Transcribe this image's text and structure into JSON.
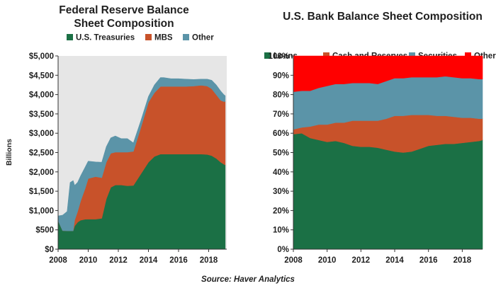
{
  "chart_data": [
    {
      "type": "area",
      "stacked": true,
      "title": "Federal Reserve Balance Sheet Composition",
      "xlabel": "",
      "ylabel": "Billions",
      "xlim": [
        2008,
        2019.2
      ],
      "ylim": [
        0,
        5000
      ],
      "x_ticks": [
        2008,
        2010,
        2012,
        2014,
        2016,
        2018
      ],
      "x_tick_labels": [
        "2008",
        "2010",
        "2012",
        "2014",
        "2016",
        "2018"
      ],
      "y_ticks": [
        0,
        500,
        1000,
        1500,
        2000,
        2500,
        3000,
        3500,
        4000,
        4500,
        5000
      ],
      "y_tick_labels": [
        "$0",
        "$500",
        "$1,000",
        "$1,500",
        "$2,000",
        "$2,500",
        "$3,000",
        "$3,500",
        "$4,000",
        "$4,500",
        "$5,000"
      ],
      "legend_position": "top",
      "grid": false,
      "background": "#e6e6e6",
      "x": [
        2008.0,
        2008.3,
        2008.6,
        2008.8,
        2009.0,
        2009.1,
        2009.3,
        2009.5,
        2009.8,
        2010.0,
        2010.5,
        2010.9,
        2011.2,
        2011.5,
        2011.8,
        2012.2,
        2012.6,
        2013.0,
        2013.5,
        2014.0,
        2014.4,
        2014.8,
        2015.0,
        2015.5,
        2016.0,
        2016.5,
        2017.0,
        2017.5,
        2017.9,
        2018.2,
        2018.5,
        2018.8,
        2019.0,
        2019.1
      ],
      "series": [
        {
          "name": "U.S. Treasuries",
          "color": "#1b7045",
          "values": [
            740,
            480,
            475,
            475,
            475,
            600,
            700,
            750,
            775,
            777,
            777,
            800,
            1300,
            1600,
            1660,
            1660,
            1640,
            1650,
            1950,
            2250,
            2400,
            2460,
            2460,
            2460,
            2460,
            2460,
            2460,
            2460,
            2450,
            2420,
            2350,
            2250,
            2200,
            2180
          ]
        },
        {
          "name": "MBS",
          "color": "#c8522a",
          "values": [
            0,
            0,
            0,
            0,
            0,
            150,
            280,
            500,
            800,
            1050,
            1100,
            1050,
            950,
            880,
            850,
            850,
            870,
            880,
            1200,
            1550,
            1650,
            1750,
            1750,
            1750,
            1750,
            1750,
            1760,
            1780,
            1770,
            1730,
            1650,
            1600,
            1620,
            1640
          ]
        },
        {
          "name": "Other",
          "color": "#5b94a8",
          "values": [
            120,
            400,
            500,
            1250,
            1300,
            900,
            750,
            650,
            550,
            450,
            380,
            400,
            400,
            400,
            420,
            350,
            350,
            220,
            180,
            150,
            200,
            230,
            230,
            200,
            200,
            190,
            170,
            160,
            180,
            220,
            250,
            240,
            180,
            150
          ]
        }
      ]
    },
    {
      "type": "area",
      "stacked": true,
      "title": "U.S. Bank Balance Sheet Composition",
      "xlabel": "",
      "ylabel": "",
      "xlim": [
        2008,
        2019.2
      ],
      "ylim": [
        0,
        100
      ],
      "x_ticks": [
        2008,
        2010,
        2012,
        2014,
        2016,
        2018
      ],
      "x_tick_labels": [
        "2008",
        "2010",
        "2012",
        "2014",
        "2016",
        "2018"
      ],
      "y_ticks": [
        0,
        10,
        20,
        30,
        40,
        50,
        60,
        70,
        80,
        90,
        100
      ],
      "y_tick_labels": [
        "0%",
        "10%",
        "20%",
        "30%",
        "40%",
        "50%",
        "60%",
        "70%",
        "80%",
        "90%",
        "100%"
      ],
      "legend_position": "top",
      "grid": false,
      "x": [
        2008.0,
        2008.5,
        2009.0,
        2009.5,
        2010.0,
        2010.5,
        2011.0,
        2011.5,
        2012.0,
        2012.5,
        2013.0,
        2013.5,
        2014.0,
        2014.5,
        2015.0,
        2015.5,
        2016.0,
        2016.5,
        2017.0,
        2017.5,
        2018.0,
        2018.5,
        2019.0,
        2019.2
      ],
      "series": [
        {
          "name": "Loans",
          "color": "#1b7045",
          "values": [
            59.5,
            60.0,
            57.5,
            56.5,
            55.5,
            56.0,
            55.0,
            53.5,
            53.0,
            53.0,
            52.5,
            51.5,
            50.5,
            50.0,
            50.5,
            52.0,
            53.5,
            54.0,
            54.5,
            54.5,
            55.0,
            55.5,
            56.0,
            56.5
          ]
        },
        {
          "name": "Cash and Reserves",
          "color": "#c8522a",
          "values": [
            2.5,
            3.0,
            6.0,
            8.0,
            9.0,
            9.5,
            10.5,
            13.0,
            13.5,
            13.5,
            14.0,
            16.0,
            18.5,
            19.0,
            19.0,
            17.5,
            16.0,
            15.0,
            14.5,
            14.0,
            13.0,
            12.5,
            11.5,
            11.0
          ]
        },
        {
          "name": "Securities",
          "color": "#5b94a8",
          "values": [
            19.5,
            19.0,
            18.5,
            19.0,
            20.0,
            20.0,
            20.0,
            19.5,
            19.5,
            19.5,
            19.0,
            19.5,
            19.5,
            19.5,
            19.5,
            19.5,
            19.5,
            20.0,
            20.5,
            20.5,
            20.5,
            20.5,
            20.5,
            20.5
          ]
        },
        {
          "name": "Other",
          "color": "#ff0000",
          "values": [
            18.5,
            18.0,
            18.0,
            16.5,
            15.5,
            14.5,
            14.5,
            14.0,
            14.0,
            14.0,
            14.5,
            13.0,
            11.5,
            11.5,
            11.0,
            11.0,
            11.0,
            11.0,
            10.5,
            11.0,
            11.5,
            11.5,
            12.0,
            12.0
          ]
        }
      ]
    }
  ],
  "footer": {
    "source": "Source: Haver Analytics"
  }
}
